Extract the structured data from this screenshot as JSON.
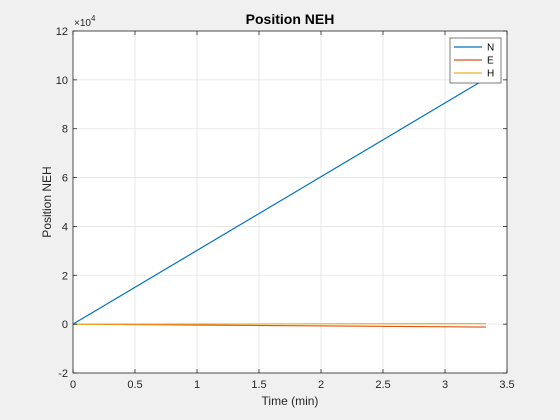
{
  "chart_data": {
    "type": "line",
    "title": "Position NEH",
    "xlabel": "Time (min)",
    "ylabel": "Position NEH",
    "xlim": [
      0,
      3.5
    ],
    "ylim": [
      -2,
      12
    ],
    "y_scale_exponent": "×10^4",
    "y_exponent_base": "×10",
    "y_exponent_power": "4",
    "x_ticks": [
      0,
      0.5,
      1,
      1.5,
      2,
      2.5,
      3,
      3.5
    ],
    "x_tick_labels": [
      "0",
      "0.5",
      "1",
      "1.5",
      "2",
      "2.5",
      "3",
      "3.5"
    ],
    "y_ticks": [
      -2,
      0,
      2,
      4,
      6,
      8,
      10,
      12
    ],
    "y_tick_labels": [
      "-2",
      "0",
      "2",
      "4",
      "6",
      "8",
      "10",
      "12"
    ],
    "grid": true,
    "legend_position": "top-right",
    "series": [
      {
        "name": "N",
        "color": "#0072BD",
        "x": [
          0,
          3.33
        ],
        "y": [
          0,
          10.05
        ]
      },
      {
        "name": "E",
        "color": "#D95319",
        "x": [
          0,
          3.33
        ],
        "y": [
          0,
          -0.12
        ]
      },
      {
        "name": "H",
        "color": "#EDB120",
        "x": [
          0,
          3.33
        ],
        "y": [
          0,
          0.02
        ]
      }
    ]
  }
}
